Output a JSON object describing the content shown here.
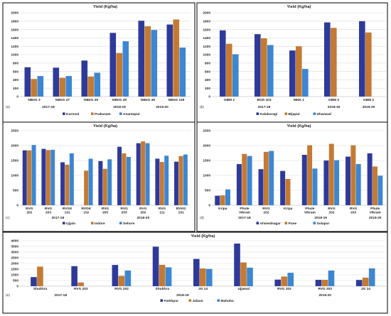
{
  "colors": {
    "series1": "#2E3A9A",
    "series2": "#C47A32",
    "series3": "#3D86D2"
  },
  "chart_data": [
    {
      "type": "bar",
      "panel_label": "(a)",
      "title": "Yield (Kg/ha)",
      "categories": [
        "NBeG 3",
        "NBeG 47",
        "NBeG 49",
        "NBeG 49",
        "NBeG 49",
        "NBeG 119"
      ],
      "groups": [
        {
          "label": "2017-18",
          "from": 0,
          "to": 1
        },
        {
          "label": "2018-19",
          "from": 3,
          "to": 3
        },
        {
          "label": "2019-20",
          "from": 4,
          "to": 5
        }
      ],
      "series": [
        {
          "name": "Kurnool",
          "values": [
            700,
            690,
            860,
            1520,
            1810,
            1720
          ]
        },
        {
          "name": "Prakasam",
          "values": [
            420,
            450,
            480,
            1040,
            1680,
            1840
          ]
        },
        {
          "name": "Anantapur",
          "values": [
            490,
            490,
            570,
            1320,
            1590,
            1170
          ]
        }
      ],
      "ylim": [
        0,
        2000
      ],
      "yticks": [
        0,
        200,
        400,
        600,
        800,
        1000,
        1200,
        1400,
        1600,
        1800,
        2000
      ]
    },
    {
      "type": "bar",
      "panel_label": "(b)",
      "title": "Yield (Kg/ha)",
      "categories": [
        "GBM 2",
        "BGD 103",
        "MNK 1",
        "GBM 2",
        "GBM 2"
      ],
      "groups": [
        {
          "label": "2017-18",
          "from": 0,
          "to": 2
        },
        {
          "label": "2018-19",
          "from": 3,
          "to": 3
        },
        {
          "label": "2019-20",
          "from": 4,
          "to": 4
        }
      ],
      "series": [
        {
          "name": "Kalaburagi",
          "values": [
            1580,
            1490,
            1100,
            1770,
            1800
          ]
        },
        {
          "name": "Bijapur",
          "values": [
            1260,
            1390,
            1200,
            1640,
            1530
          ]
        },
        {
          "name": "Dharwad",
          "values": [
            1010,
            1230,
            660,
            null,
            null
          ]
        }
      ],
      "ylim": [
        0,
        2000
      ],
      "yticks": [
        0,
        200,
        400,
        600,
        800,
        1000,
        1200,
        1400,
        1600,
        1800,
        2000
      ]
    },
    {
      "type": "bar",
      "panel_label": "(c)",
      "title": "Yield (Kg/ha)",
      "categories": [
        "RVG 202",
        "RVG 203",
        "RVGK 101",
        "RVGK 102",
        "RVG 205",
        "RVG 203",
        "RVG 202",
        "RVG 111",
        "RVKG 101"
      ],
      "groups": [
        {
          "label": "2017-18",
          "from": 0,
          "to": 3
        },
        {
          "label": "2019-20",
          "from": 4,
          "to": 8
        }
      ],
      "series": [
        {
          "name": "Ujjain",
          "values": [
            1840,
            1890,
            1440,
            null,
            1480,
            1960,
            2080,
            1560,
            1460
          ]
        },
        {
          "name": "Indore",
          "values": [
            1840,
            1850,
            1360,
            1160,
            1220,
            1740,
            2140,
            1450,
            1650
          ]
        },
        {
          "name": "Sehore",
          "values": [
            2020,
            1860,
            1740,
            1560,
            1540,
            1620,
            2080,
            1660,
            1700
          ]
        }
      ],
      "ylim": [
        0,
        2500
      ],
      "yticks": [
        0,
        500,
        1000,
        1500,
        2000,
        2500
      ]
    },
    {
      "type": "bar",
      "panel_label": "(d)",
      "title": "Yield (Kg/ha)",
      "categories": [
        "Kripa",
        "Phule Vikram",
        "RVG 202",
        "Kripa",
        "Phule Vikram",
        "RVG 202",
        "RVG 203",
        "Phule Vikram"
      ],
      "groups": [
        {
          "label": "2017-18",
          "from": 0,
          "to": 2
        },
        {
          "label": "2018-19",
          "from": 3,
          "to": 6
        },
        {
          "label": "2019-20",
          "from": 7,
          "to": 7
        }
      ],
      "series": [
        {
          "name": "Ahmednagar",
          "values": [
            320,
            1380,
            1210,
            1150,
            1690,
            1500,
            1630,
            1740
          ]
        },
        {
          "name": "Pune",
          "values": [
            330,
            1720,
            1790,
            880,
            2010,
            2060,
            2010,
            1300
          ]
        },
        {
          "name": "Solapur",
          "values": [
            530,
            1650,
            1820,
            null,
            1230,
            1510,
            1380,
            990
          ]
        }
      ],
      "ylim": [
        0,
        2500
      ],
      "yticks": [
        0,
        500,
        1000,
        1500,
        2000,
        2500
      ]
    },
    {
      "type": "bar",
      "panel_label": "(e)",
      "title": "Yield (Kg/ha)",
      "categories": [
        "Shubhra",
        "RVG 202",
        "RVG 202",
        "Shubhra",
        "JG 14",
        "Ujjawal",
        "RVG 202",
        "RVG 203",
        "JG 14"
      ],
      "groups": [
        {
          "label": "2017-18",
          "from": 0,
          "to": 1
        },
        {
          "label": "2018-19",
          "from": 2,
          "to": 5
        },
        {
          "label": "2019-20",
          "from": 6,
          "to": 8
        }
      ],
      "series": [
        {
          "name": "Fatehpur",
          "values": [
            800,
            1760,
            1870,
            3480,
            2400,
            3750,
            580,
            560,
            550
          ]
        },
        {
          "name": "Jalaun",
          "values": [
            1720,
            330,
            910,
            1880,
            1560,
            2090,
            850,
            560,
            750
          ]
        },
        {
          "name": "Mahoba",
          "values": [
            null,
            null,
            1380,
            1660,
            1520,
            1630,
            1180,
            1380,
            1570
          ]
        }
      ],
      "ylim": [
        0,
        4000
      ],
      "yticks": [
        0,
        500,
        1000,
        1500,
        2000,
        2500,
        3000,
        3500,
        4000
      ]
    }
  ]
}
